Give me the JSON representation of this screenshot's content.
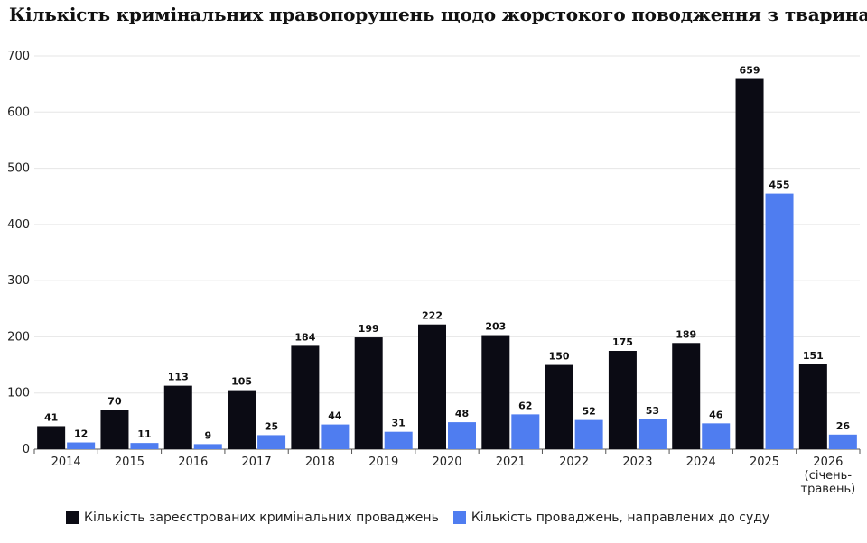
{
  "chart_data": {
    "type": "bar",
    "title": "Кількість кримінальних правопорушень щодо жорстокого поводження з тваринами",
    "categories": [
      "2014",
      "2015",
      "2016",
      "2017",
      "2018",
      "2019",
      "2020",
      "2021",
      "2022",
      "2023",
      "2024",
      "2025",
      "2026 (січень-травень)"
    ],
    "category_lines": [
      [
        "2014"
      ],
      [
        "2015"
      ],
      [
        "2016"
      ],
      [
        "2017"
      ],
      [
        "2018"
      ],
      [
        "2019"
      ],
      [
        "2020"
      ],
      [
        "2021"
      ],
      [
        "2022"
      ],
      [
        "2023"
      ],
      [
        "2024"
      ],
      [
        "2025"
      ],
      [
        "2026",
        "(січень-",
        "травень)"
      ]
    ],
    "series": [
      {
        "name": "Кількість зареєстрованих кримінальних проваджень",
        "color": "#0b0b14",
        "values": [
          41,
          70,
          113,
          105,
          184,
          199,
          222,
          203,
          150,
          175,
          189,
          659,
          151
        ]
      },
      {
        "name": "Кількість проваджень, направлених до суду",
        "color": "#4f7df0",
        "values": [
          12,
          11,
          9,
          25,
          44,
          31,
          48,
          62,
          52,
          53,
          46,
          455,
          26
        ]
      }
    ],
    "ylim": [
      0,
      700
    ],
    "yticks": [
      0,
      100,
      200,
      300,
      400,
      500,
      600,
      700
    ],
    "xlabel": "",
    "ylabel": "",
    "grid": true,
    "legend_position": "bottom"
  }
}
